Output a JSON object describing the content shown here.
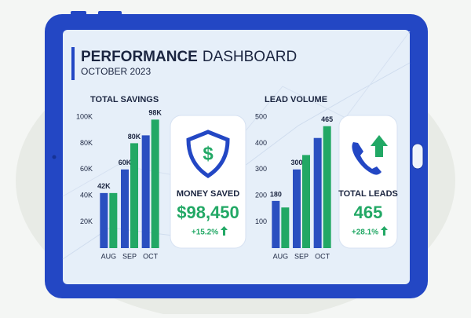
{
  "header": {
    "title_bold": "PERFORMANCE",
    "title_rest": "DASHBOARD",
    "subtitle": "OCTOBER 2023"
  },
  "chart_data": [
    {
      "type": "bar",
      "title": "TOTAL SAVINGS",
      "categories": [
        "AUG",
        "SEP",
        "OCT"
      ],
      "series": [
        {
          "color": "#2a4fc0",
          "values": [
            42000,
            60000,
            86000
          ],
          "value_labels": [
            "42K",
            "60K",
            null
          ]
        },
        {
          "color": "#22a865",
          "values": [
            42000,
            80000,
            98000
          ],
          "value_labels": [
            null,
            "80K",
            "98K"
          ]
        }
      ],
      "ylim": [
        0,
        100000
      ],
      "yticks": [
        {
          "value": 20000,
          "label": "20K"
        },
        {
          "value": 40000,
          "label": "40K"
        },
        {
          "value": 60000,
          "label": "60K"
        },
        {
          "value": 80000,
          "label": "80K"
        },
        {
          "value": 100000,
          "label": "100K"
        }
      ]
    },
    {
      "type": "bar",
      "title": "LEAD VOLUME",
      "categories": [
        "AUG",
        "SEP",
        "OCT"
      ],
      "series": [
        {
          "color": "#2a4fc0",
          "values": [
            180,
            300,
            420
          ],
          "value_labels": [
            "180",
            "300",
            null
          ]
        },
        {
          "color": "#22a865",
          "values": [
            155,
            355,
            465
          ],
          "value_labels": [
            null,
            null,
            "465"
          ]
        }
      ],
      "ylim": [
        0,
        500
      ],
      "yticks": [
        100,
        200,
        300,
        400,
        500
      ]
    }
  ],
  "cards": [
    {
      "label": "MONEY SAVED",
      "value": "$98,450",
      "change": "+15.2%"
    },
    {
      "label": "TOTAL LEADS",
      "value": "465",
      "change": "+28.1%"
    }
  ]
}
